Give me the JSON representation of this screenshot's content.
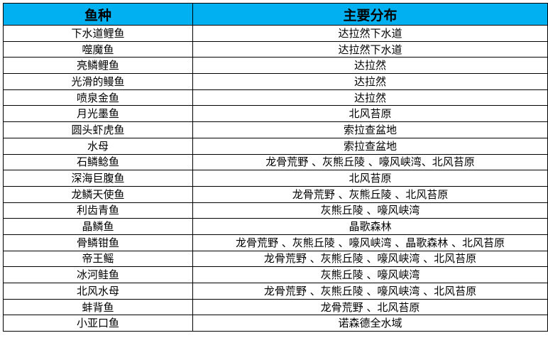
{
  "colors": {
    "header_bg": "#00B0F0",
    "border": "#000000",
    "text": "#000000"
  },
  "table": {
    "headers": [
      "鱼种",
      "主要分布"
    ],
    "rows": [
      [
        "下水道鲤鱼",
        "达拉然下水道"
      ],
      [
        "噬魔鱼",
        "达拉然下水道"
      ],
      [
        "亮鳞鲤鱼",
        "达拉然"
      ],
      [
        "光滑的鳗鱼",
        "达拉然"
      ],
      [
        "喷泉金鱼",
        "达拉然"
      ],
      [
        "月光墨鱼",
        "北风苔原"
      ],
      [
        "圆头虾虎鱼",
        "索拉查盆地"
      ],
      [
        "水母",
        "索拉查盆地"
      ],
      [
        "石鳞鲶鱼",
        "龙骨荒野 、灰熊丘陵 、嚎风峡湾、北风苔原"
      ],
      [
        "深海巨腹鱼",
        "北风苔原"
      ],
      [
        "龙鳞天使鱼",
        "龙骨荒野 、灰熊丘陵 、北风苔原"
      ],
      [
        "利齿青鱼",
        "灰熊丘陵 、嚎风峡湾"
      ],
      [
        "晶鳞鱼",
        "晶歌森林"
      ],
      [
        "骨鳞钳鱼",
        "龙骨荒野 、灰熊丘陵 、嚎风峡湾 、晶歌森林 、北风苔原"
      ],
      [
        "帝王鳐",
        "龙骨荒野 、灰熊丘陵 、嚎风峡湾 、北风苔原"
      ],
      [
        "冰河鲑鱼",
        "灰熊丘陵 、嚎风峡湾"
      ],
      [
        "北风水母",
        "龙骨荒野 、灰熊丘陵 、嚎风峡湾 、北风苔原"
      ],
      [
        "蚌背鱼",
        "龙骨荒野 、北风苔原"
      ],
      [
        "小亚口鱼",
        "诺森德全水域"
      ]
    ]
  }
}
